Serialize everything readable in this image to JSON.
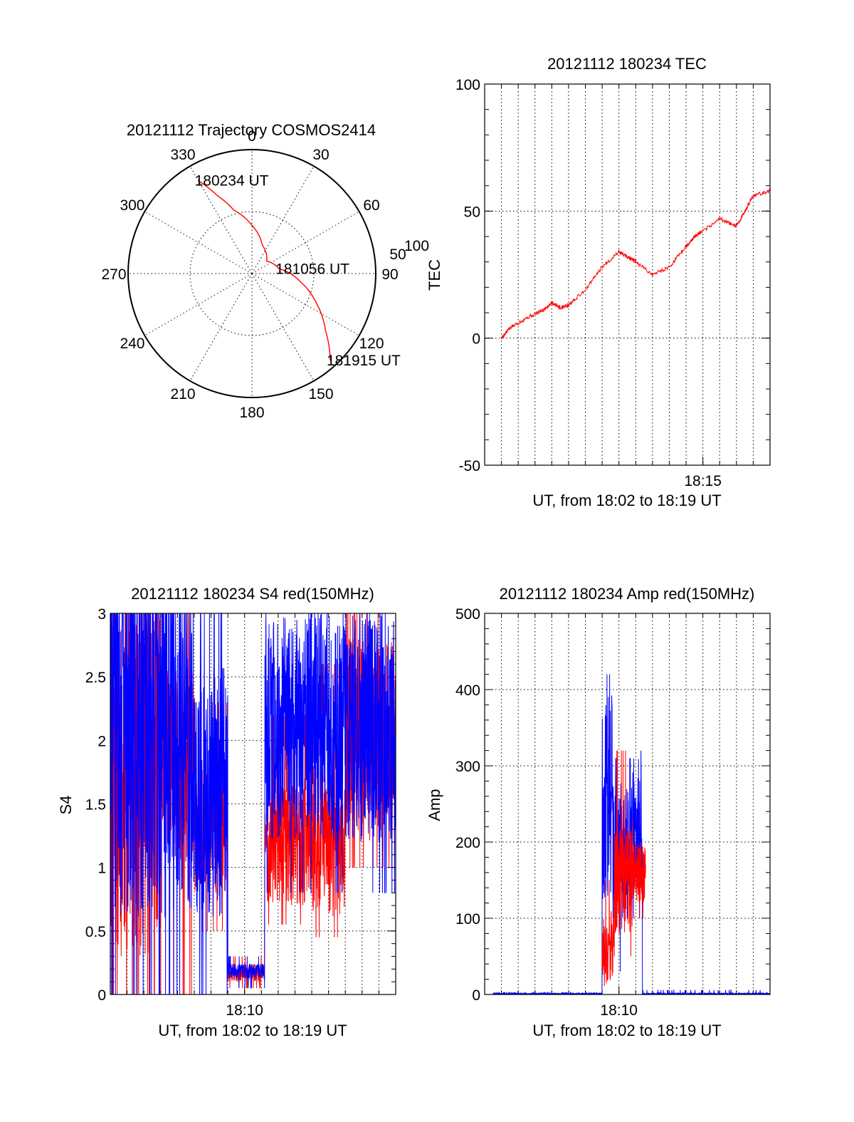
{
  "chart_data": [
    {
      "type": "polar",
      "title": "20121112 Trajectory COSMOS2414",
      "angle_labels": [
        "0",
        "30",
        "60",
        "90",
        "120",
        "150",
        "180",
        "210",
        "240",
        "270",
        "300",
        "330"
      ],
      "radial_labels": [
        "50",
        "100"
      ],
      "grid": true,
      "series": [
        {
          "color": "#ff0000",
          "points": [
            [
              330,
              78
            ],
            [
              336,
              62
            ],
            [
              344,
              48
            ],
            [
              0,
              35
            ],
            [
              20,
              22
            ],
            [
              50,
              14
            ],
            [
              80,
              20
            ],
            [
              100,
              36
            ],
            [
              115,
              52
            ],
            [
              128,
              68
            ],
            [
              138,
              85
            ]
          ]
        }
      ],
      "annotations": [
        {
          "text": "180234 UT",
          "azimuth": 330,
          "elevation": 78
        },
        {
          "text": "181056 UT",
          "azimuth": 80,
          "elevation": 20
        },
        {
          "text": "181915 UT",
          "azimuth": 138,
          "elevation": 85
        }
      ]
    },
    {
      "type": "line",
      "title": "20121112 180234 TEC",
      "xlabel": "UT, from 18:02 to 18:19 UT",
      "ylabel": "TEC",
      "ylim": [
        -50,
        100
      ],
      "yticks": [
        -50,
        0,
        50,
        100
      ],
      "xlim_min": [
        2.0,
        19.0
      ],
      "xticks": [
        {
          "value": 15.0,
          "label": "18:15"
        }
      ],
      "grid": true,
      "series": [
        {
          "color": "#ff0000",
          "x": [
            3.0,
            3.5,
            4.5,
            5.5,
            6.0,
            6.5,
            7.0,
            8.0,
            9.0,
            10.0,
            10.5,
            11.0,
            12.0,
            13.0,
            14.0,
            14.5,
            15.0,
            16.0,
            17.0,
            17.5,
            18.0,
            19.0
          ],
          "y": [
            0,
            4,
            8,
            11,
            14,
            12,
            13,
            19,
            28,
            34,
            32,
            30,
            25,
            28,
            36,
            40,
            42,
            47,
            44,
            50,
            56,
            58
          ]
        }
      ]
    },
    {
      "type": "line",
      "title": "20121112 180234 S4 red(150MHz)",
      "xlabel": "UT, from 18:02 to 18:19 UT",
      "ylabel": "S4",
      "ylim": [
        0,
        3
      ],
      "yticks": [
        0,
        0.5,
        1,
        1.5,
        2,
        2.5,
        3
      ],
      "xlim_min": [
        2.0,
        19.0
      ],
      "xticks": [
        {
          "value": 10.0,
          "label": "18:10"
        }
      ],
      "grid": true,
      "series": [
        {
          "color": "#ff0000",
          "seed": 11,
          "segments": [
            {
              "x": [
                2.0,
                5.0
              ],
              "base": 1.7,
              "amp": 1.4,
              "min": 0.0,
              "max": 3.0
            },
            {
              "x": [
                5.0,
                7.0
              ],
              "base": 1.8,
              "amp": 0.8,
              "min": 0.0,
              "max": 3.0
            },
            {
              "x": [
                7.0,
                9.0
              ],
              "base": 1.3,
              "amp": 0.5,
              "min": 0.5,
              "max": 2.3
            },
            {
              "x": [
                9.0,
                11.2
              ],
              "base": 0.17,
              "amp": 0.07,
              "min": 0.05,
              "max": 0.3
            },
            {
              "x": [
                11.2,
                14.0
              ],
              "base": 1.2,
              "amp": 0.5,
              "min": 0.55,
              "max": 2.2
            },
            {
              "x": [
                14.0,
                16.0
              ],
              "base": 1.2,
              "amp": 0.6,
              "min": 0.45,
              "max": 2.6
            },
            {
              "x": [
                16.0,
                19.0
              ],
              "base": 2.0,
              "amp": 0.8,
              "min": 1.0,
              "max": 3.0
            }
          ]
        },
        {
          "color": "#0000ff",
          "seed": 29,
          "segments": [
            {
              "x": [
                2.0,
                6.0
              ],
              "base": 2.2,
              "amp": 1.6,
              "min": 0.0,
              "max": 3.0
            },
            {
              "x": [
                6.0,
                7.0
              ],
              "base": 2.0,
              "amp": 1.4,
              "min": 0.0,
              "max": 3.0
            },
            {
              "x": [
                7.0,
                9.0
              ],
              "base": 1.6,
              "amp": 1.0,
              "min": 0.0,
              "max": 3.0
            },
            {
              "x": [
                9.0,
                11.2
              ],
              "base": 0.18,
              "amp": 0.06,
              "min": 0.05,
              "max": 0.3
            },
            {
              "x": [
                11.2,
                19.0
              ],
              "base": 2.1,
              "amp": 0.9,
              "min": 0.8,
              "max": 3.0
            }
          ]
        }
      ]
    },
    {
      "type": "line",
      "title": "20121112 180234 Amp red(150MHz)",
      "xlabel": "UT, from 18:02 to 18:19 UT",
      "ylabel": "Amp",
      "ylim": [
        0,
        500
      ],
      "yticks": [
        0,
        100,
        200,
        300,
        400,
        500
      ],
      "xlim_min": [
        2.0,
        19.0
      ],
      "xticks": [
        {
          "value": 10.0,
          "label": "18:10"
        }
      ],
      "grid": true,
      "series": [
        {
          "color": "#0000ff",
          "seed": 7,
          "segments": [
            {
              "x": [
                2.5,
                9.0
              ],
              "base": 1,
              "amp": 1,
              "min": 0,
              "max": 3
            },
            {
              "x": [
                9.0,
                9.6
              ],
              "base": 260,
              "amp": 140,
              "min": 80,
              "max": 420
            },
            {
              "x": [
                9.6,
                10.8
              ],
              "base": 190,
              "amp": 90,
              "min": 30,
              "max": 310
            },
            {
              "x": [
                10.8,
                11.4
              ],
              "base": 220,
              "amp": 90,
              "min": 100,
              "max": 320
            },
            {
              "x": [
                11.4,
                19.0
              ],
              "base": 1,
              "amp": 1,
              "min": 0,
              "max": 6
            }
          ]
        },
        {
          "color": "#ff0000",
          "seed": 17,
          "segments": [
            {
              "x": [
                9.0,
                9.7
              ],
              "base": 60,
              "amp": 50,
              "min": 5,
              "max": 150
            },
            {
              "x": [
                9.7,
                10.8
              ],
              "base": 150,
              "amp": 70,
              "min": 50,
              "max": 320
            },
            {
              "x": [
                10.8,
                11.6
              ],
              "base": 160,
              "amp": 40,
              "min": 100,
              "max": 230
            }
          ]
        }
      ]
    }
  ]
}
